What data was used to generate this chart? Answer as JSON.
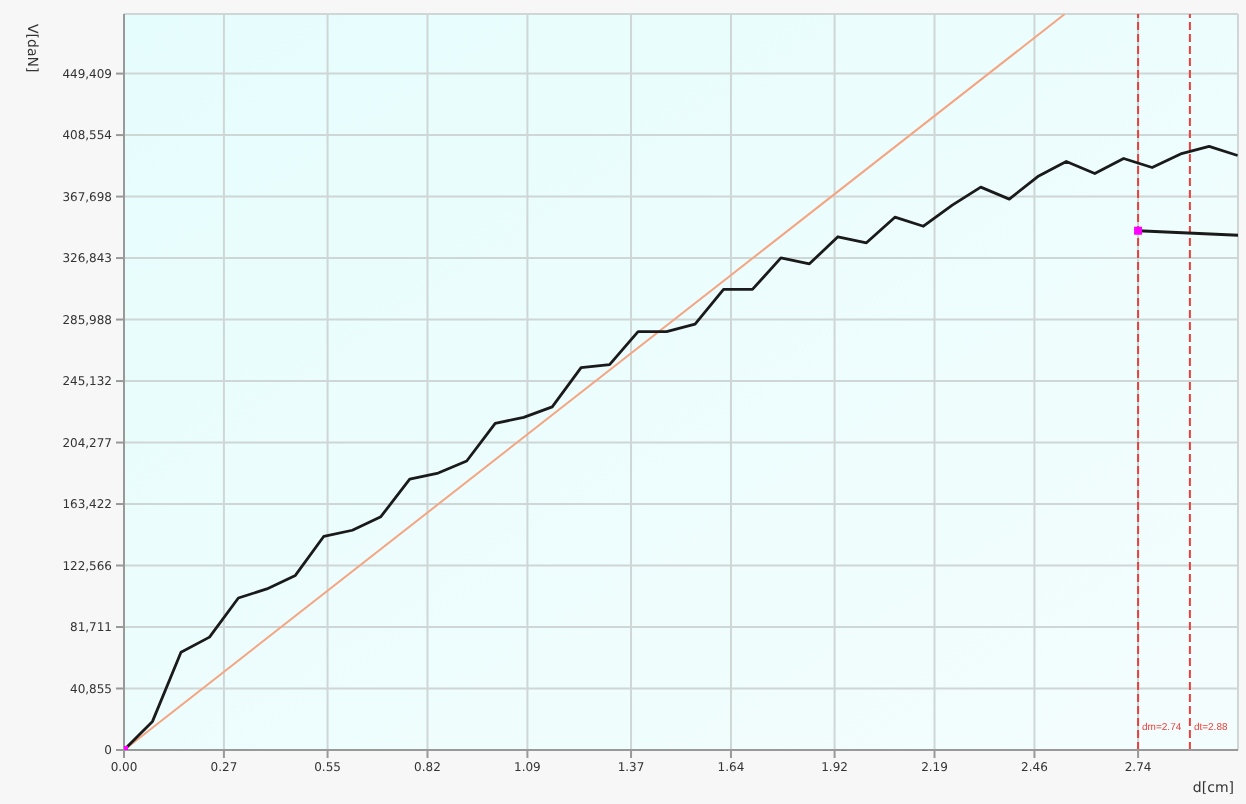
{
  "chart_data": {
    "type": "line",
    "xlabel": "d[cm]",
    "ylabel": "V[daN]",
    "xlim": [
      0,
      3.01
    ],
    "ylim": [
      0,
      489000
    ],
    "xticks": [
      {
        "value": 0,
        "label": "0.00"
      },
      {
        "value": 0.27,
        "label": "0.27"
      },
      {
        "value": 0.55,
        "label": "0.55"
      },
      {
        "value": 0.82,
        "label": "0.82"
      },
      {
        "value": 1.09,
        "label": "1.09"
      },
      {
        "value": 1.37,
        "label": "1.37"
      },
      {
        "value": 1.64,
        "label": "1.64"
      },
      {
        "value": 1.92,
        "label": "1.92"
      },
      {
        "value": 2.19,
        "label": "2.19"
      },
      {
        "value": 2.46,
        "label": "2.46"
      },
      {
        "value": 2.74,
        "label": "2.74"
      }
    ],
    "yticks": [
      0,
      {
        "value": 40855,
        "label": "40,855"
      },
      {
        "value": 81711,
        "label": "81,711"
      },
      {
        "value": 122566,
        "label": "122,566"
      },
      {
        "value": 163422,
        "label": "163,422"
      },
      {
        "value": 204277,
        "label": "204,277"
      },
      {
        "value": 245132,
        "label": "245,132"
      },
      {
        "value": 285988,
        "label": "285,988"
      },
      {
        "value": 326843,
        "label": "326,843"
      },
      {
        "value": 367698,
        "label": "367,698"
      },
      {
        "value": 408554,
        "label": "408,554"
      },
      {
        "value": 449409,
        "label": "449,409"
      }
    ],
    "grid": true,
    "marker": "none",
    "series": [
      {
        "color": "#f4a582",
        "x": [
          0,
          2.542
        ],
        "values": [
          0,
          489000
        ]
      },
      {
        "color": "#1a1a1a",
        "x": [
          0,
          0.077,
          0.154,
          0.231,
          0.309,
          0.386,
          0.463,
          0.54,
          0.617,
          0.694,
          0.772,
          0.849,
          0.926,
          1.003,
          1.08,
          1.157,
          1.235,
          1.312,
          1.389,
          1.466,
          1.543,
          1.62,
          1.698,
          1.775,
          1.852,
          1.929,
          2.006,
          2.083,
          2.16,
          2.238,
          2.315,
          2.392,
          2.469,
          2.546,
          2.623,
          2.701,
          2.778,
          2.855,
          2.932,
          3.009
        ],
        "values": [
          0,
          19000,
          65000,
          75000,
          101000,
          107000,
          116000,
          142000,
          146000,
          155000,
          180000,
          184000,
          192000,
          217000,
          221000,
          228000,
          254000,
          256000,
          278000,
          278000,
          283000,
          306000,
          306000,
          327000,
          323000,
          341000,
          337000,
          354000,
          348000,
          362000,
          374000,
          366000,
          381000,
          391000,
          383000,
          393000,
          387000,
          396000,
          401000,
          395000
        ]
      },
      {
        "color": "#1a1a1a",
        "x": [
          2.74,
          3.01
        ],
        "values": [
          345000,
          342000
        ]
      },
      {
        "type": "scatter",
        "color": "#ff00ff",
        "marker": "square",
        "x": [
          0,
          2.74
        ],
        "values": [
          0,
          345000
        ]
      }
    ],
    "ref_lines": [
      {
        "axis": "x",
        "value": 2.74,
        "label": "dm=2.74",
        "color": "#e8403c",
        "line_style": "dashed"
      },
      {
        "axis": "x",
        "value": 2.88,
        "label": "dt=2.88",
        "color": "#e8403c",
        "line_style": "dashed"
      }
    ]
  }
}
